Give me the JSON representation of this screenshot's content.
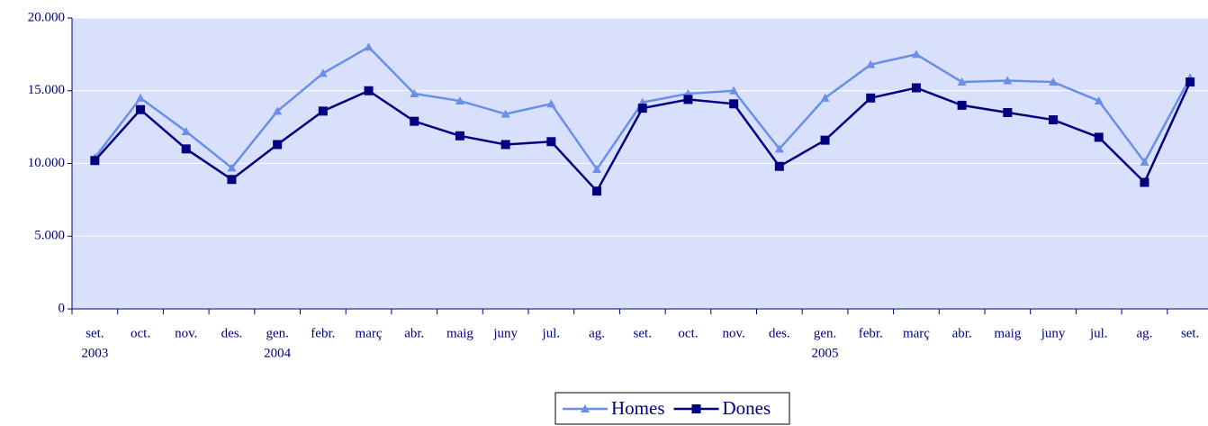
{
  "chart_data": {
    "type": "line",
    "categories": [
      "set.",
      "oct.",
      "nov.",
      "des.",
      "gen.",
      "febr.",
      "març",
      "abr.",
      "maig",
      "juny",
      "jul.",
      "ag.",
      "set.",
      "oct.",
      "nov.",
      "des.",
      "gen.",
      "febr.",
      "març",
      "abr.",
      "maig",
      "juny",
      "jul.",
      "ag.",
      "set."
    ],
    "x_sublabels": [
      "2003",
      null,
      null,
      null,
      "2004",
      null,
      null,
      null,
      null,
      null,
      null,
      null,
      null,
      null,
      null,
      null,
      "2005",
      null,
      null,
      null,
      null,
      null,
      null,
      null,
      null
    ],
    "series": [
      {
        "name": "Homes",
        "color": "#6b8fe8",
        "marker": "triangle",
        "values": [
          10400,
          14500,
          12200,
          9700,
          13600,
          16200,
          18000,
          14800,
          14300,
          13400,
          14100,
          9600,
          14200,
          14800,
          15000,
          11000,
          14500,
          16800,
          17500,
          15600,
          15700,
          15600,
          14300,
          10100,
          15900
        ]
      },
      {
        "name": "Dones",
        "color": "#000080",
        "marker": "square",
        "values": [
          10200,
          13700,
          11000,
          8900,
          11300,
          13600,
          15000,
          12900,
          11900,
          11300,
          11500,
          8100,
          13800,
          14400,
          14100,
          9800,
          11600,
          14500,
          15200,
          14000,
          13500,
          13000,
          11800,
          8700,
          15600
        ]
      }
    ],
    "ylim": [
      0,
      20000
    ],
    "yticks": [
      0,
      {
        "value": 5000,
        "label": "5.000"
      },
      {
        "value": 10000,
        "label": "10.000"
      },
      {
        "value": 15000,
        "label": "15.000"
      },
      {
        "value": 20000,
        "label": "20.000"
      }
    ],
    "grid": true,
    "legend": "bottom"
  }
}
